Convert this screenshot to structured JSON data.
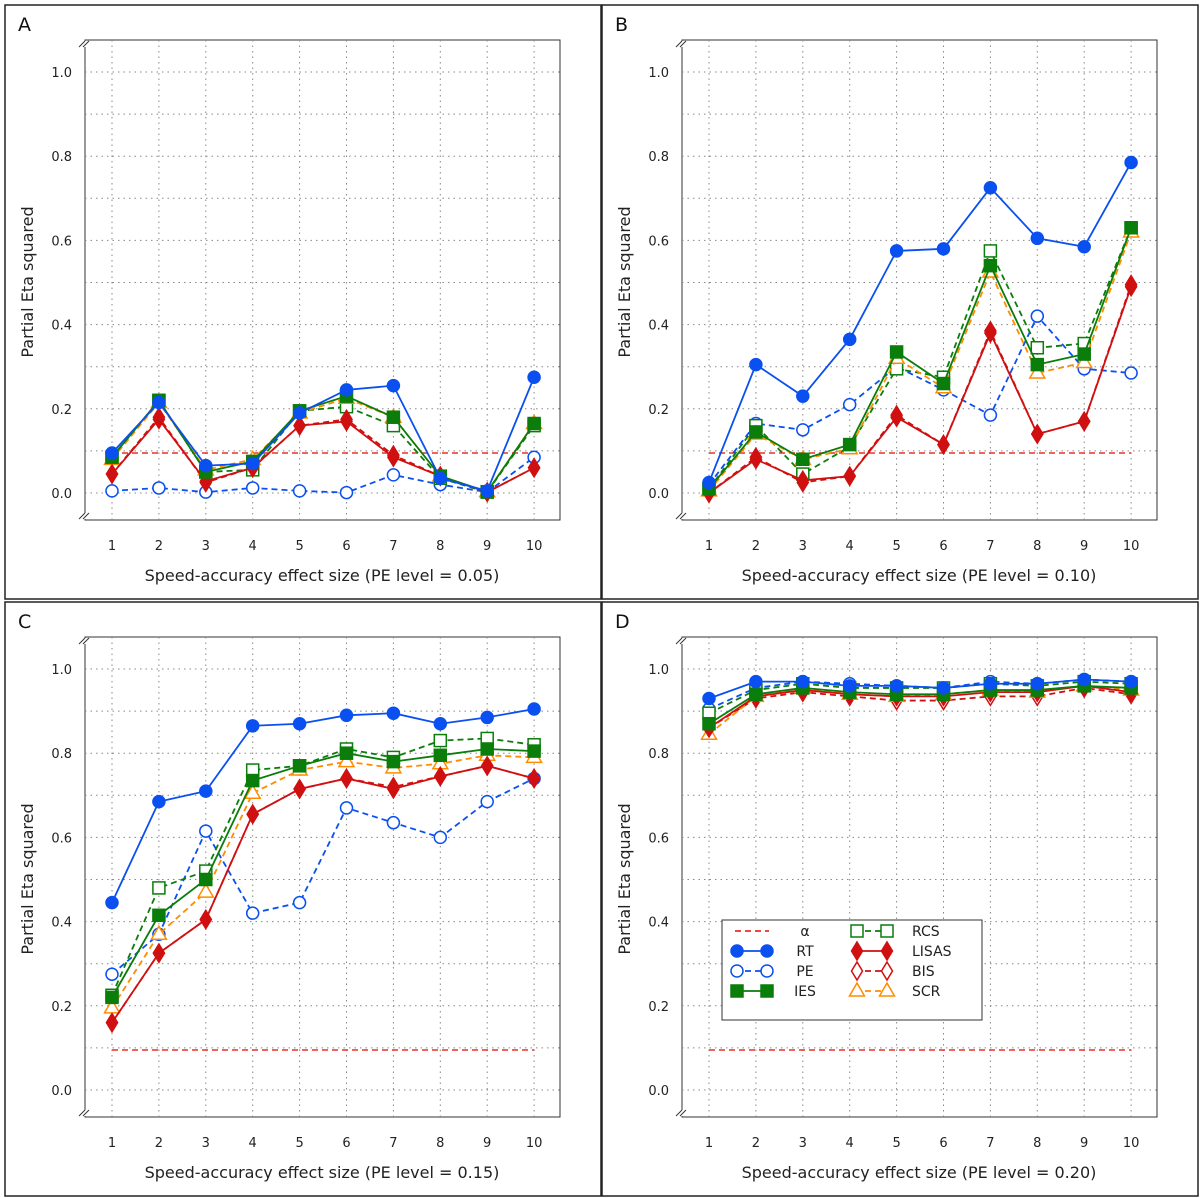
{
  "chart_data": [
    {
      "panel": "A",
      "type": "line",
      "xlabel": "Speed-accuracy effect size (PE level = 0.05)",
      "ylabel": "Partial Eta squared",
      "x": [
        1,
        2,
        3,
        4,
        5,
        6,
        7,
        8,
        9,
        10
      ],
      "xticks": [
        "1",
        "2",
        "3",
        "4",
        "5",
        "6",
        "7",
        "8",
        "9",
        "10"
      ],
      "yticks": [
        "0.0",
        "0.2",
        "0.4",
        "0.6",
        "0.8",
        "1.0"
      ],
      "ylim": [
        0,
        1.0
      ],
      "grid": true,
      "alpha": 0.095,
      "series": {
        "RT": [
          0.095,
          0.215,
          0.065,
          0.07,
          0.19,
          0.245,
          0.255,
          0.035,
          0.005,
          0.275
        ],
        "PE": [
          0.005,
          0.012,
          0.002,
          0.012,
          0.005,
          0.001,
          0.043,
          0.02,
          0.002,
          0.085
        ],
        "IES": [
          0.085,
          0.22,
          0.05,
          0.075,
          0.195,
          0.23,
          0.18,
          0.04,
          0.003,
          0.165
        ],
        "RCS": [
          0.085,
          0.22,
          0.05,
          0.055,
          0.195,
          0.205,
          0.16,
          0.035,
          0.002,
          0.16
        ],
        "LISAS": [
          0.045,
          0.175,
          0.028,
          0.06,
          0.16,
          0.17,
          0.085,
          0.04,
          0.002,
          0.06
        ],
        "BIS": [
          0.045,
          0.18,
          0.025,
          0.06,
          0.16,
          0.175,
          0.09,
          0.04,
          0.002,
          0.06
        ],
        "SCR": [
          0.08,
          0.215,
          0.055,
          0.08,
          0.19,
          0.225,
          0.18,
          0.04,
          0.003,
          0.165
        ]
      }
    },
    {
      "panel": "B",
      "type": "line",
      "xlabel": "Speed-accuracy effect size (PE level = 0.10)",
      "ylabel": "Partial Eta squared",
      "x": [
        1,
        2,
        3,
        4,
        5,
        6,
        7,
        8,
        9,
        10
      ],
      "xticks": [
        "1",
        "2",
        "3",
        "4",
        "5",
        "6",
        "7",
        "8",
        "9",
        "10"
      ],
      "yticks": [
        "0.0",
        "0.2",
        "0.4",
        "0.6",
        "0.8",
        "1.0"
      ],
      "ylim": [
        0,
        1.0
      ],
      "grid": true,
      "alpha": 0.095,
      "series": {
        "RT": [
          0.025,
          0.305,
          0.23,
          0.365,
          0.575,
          0.58,
          0.725,
          0.605,
          0.585,
          0.785
        ],
        "PE": [
          0.02,
          0.165,
          0.15,
          0.21,
          0.3,
          0.245,
          0.185,
          0.42,
          0.295,
          0.285
        ],
        "IES": [
          0.01,
          0.145,
          0.08,
          0.115,
          0.335,
          0.26,
          0.54,
          0.305,
          0.33,
          0.63
        ],
        "RCS": [
          0.01,
          0.16,
          0.045,
          0.11,
          0.295,
          0.275,
          0.575,
          0.345,
          0.355,
          0.63
        ],
        "LISAS": [
          0.0,
          0.08,
          0.03,
          0.04,
          0.18,
          0.115,
          0.38,
          0.14,
          0.17,
          0.49
        ],
        "BIS": [
          0.0,
          0.085,
          0.025,
          0.04,
          0.185,
          0.115,
          0.385,
          0.14,
          0.17,
          0.495
        ],
        "SCR": [
          0.005,
          0.14,
          0.08,
          0.105,
          0.32,
          0.25,
          0.525,
          0.285,
          0.31,
          0.62
        ]
      }
    },
    {
      "panel": "C",
      "type": "line",
      "xlabel": "Speed-accuracy effect size (PE level = 0.15)",
      "ylabel": "Partial Eta squared",
      "x": [
        1,
        2,
        3,
        4,
        5,
        6,
        7,
        8,
        9,
        10
      ],
      "xticks": [
        "1",
        "2",
        "3",
        "4",
        "5",
        "6",
        "7",
        "8",
        "9",
        "10"
      ],
      "yticks": [
        "0.0",
        "0.2",
        "0.4",
        "0.6",
        "0.8",
        "1.0"
      ],
      "ylim": [
        0,
        1.0
      ],
      "grid": true,
      "alpha": 0.095,
      "series": {
        "RT": [
          0.445,
          0.685,
          0.71,
          0.865,
          0.87,
          0.89,
          0.895,
          0.87,
          0.885,
          0.905
        ],
        "PE": [
          0.275,
          0.37,
          0.615,
          0.42,
          0.445,
          0.67,
          0.635,
          0.6,
          0.685,
          0.74
        ],
        "IES": [
          0.22,
          0.415,
          0.5,
          0.735,
          0.77,
          0.8,
          0.78,
          0.795,
          0.81,
          0.805
        ],
        "RCS": [
          0.225,
          0.48,
          0.52,
          0.76,
          0.77,
          0.81,
          0.79,
          0.83,
          0.835,
          0.82
        ],
        "LISAS": [
          0.16,
          0.325,
          0.405,
          0.655,
          0.715,
          0.74,
          0.715,
          0.745,
          0.77,
          0.74
        ],
        "BIS": [
          0.16,
          0.325,
          0.405,
          0.655,
          0.715,
          0.74,
          0.72,
          0.745,
          0.77,
          0.74
        ],
        "SCR": [
          0.195,
          0.37,
          0.47,
          0.705,
          0.76,
          0.78,
          0.765,
          0.775,
          0.795,
          0.79
        ]
      }
    },
    {
      "panel": "D",
      "type": "line",
      "xlabel": "Speed-accuracy effect size (PE level = 0.20)",
      "ylabel": "Partial Eta squared",
      "x": [
        1,
        2,
        3,
        4,
        5,
        6,
        7,
        8,
        9,
        10
      ],
      "xticks": [
        "1",
        "2",
        "3",
        "4",
        "5",
        "6",
        "7",
        "8",
        "9",
        "10"
      ],
      "yticks": [
        "0.0",
        "0.2",
        "0.4",
        "0.6",
        "0.8",
        "1.0"
      ],
      "ylim": [
        0,
        1.0
      ],
      "grid": true,
      "alpha": 0.095,
      "legend": "center-left",
      "series": {
        "RT": [
          0.93,
          0.97,
          0.97,
          0.96,
          0.96,
          0.955,
          0.965,
          0.965,
          0.975,
          0.97
        ],
        "PE": [
          0.905,
          0.955,
          0.97,
          0.965,
          0.96,
          0.955,
          0.97,
          0.965,
          0.975,
          0.97
        ],
        "IES": [
          0.87,
          0.94,
          0.955,
          0.945,
          0.94,
          0.94,
          0.95,
          0.95,
          0.96,
          0.955
        ],
        "RCS": [
          0.895,
          0.95,
          0.965,
          0.955,
          0.955,
          0.955,
          0.965,
          0.96,
          0.97,
          0.965
        ],
        "LISAS": [
          0.86,
          0.935,
          0.95,
          0.94,
          0.935,
          0.935,
          0.945,
          0.945,
          0.96,
          0.945
        ],
        "BIS": [
          0.86,
          0.93,
          0.945,
          0.935,
          0.925,
          0.925,
          0.935,
          0.935,
          0.955,
          0.94
        ],
        "SCR": [
          0.845,
          0.935,
          0.955,
          0.94,
          0.935,
          0.94,
          0.95,
          0.945,
          0.96,
          0.95
        ]
      }
    }
  ],
  "legend": {
    "entries": [
      "α",
      "RT",
      "PE",
      "IES",
      "RCS",
      "LISAS",
      "BIS",
      "SCR"
    ]
  },
  "styles": {
    "alpha": {
      "color": "#e8302a",
      "dash": true,
      "marker": "none"
    },
    "RT": {
      "color": "#0a50f0",
      "dash": false,
      "marker": "circle",
      "fill": true
    },
    "PE": {
      "color": "#0a50f0",
      "dash": true,
      "marker": "circle",
      "fill": false
    },
    "IES": {
      "color": "#0a7d0a",
      "dash": false,
      "marker": "square",
      "fill": true
    },
    "RCS": {
      "color": "#0a7d0a",
      "dash": true,
      "marker": "square",
      "fill": false
    },
    "LISAS": {
      "color": "#d01010",
      "dash": false,
      "marker": "diamond",
      "fill": true
    },
    "BIS": {
      "color": "#d01010",
      "dash": true,
      "marker": "diamond",
      "fill": false
    },
    "SCR": {
      "color": "#ff8c00",
      "dash": true,
      "marker": "triangle",
      "fill": false
    }
  }
}
